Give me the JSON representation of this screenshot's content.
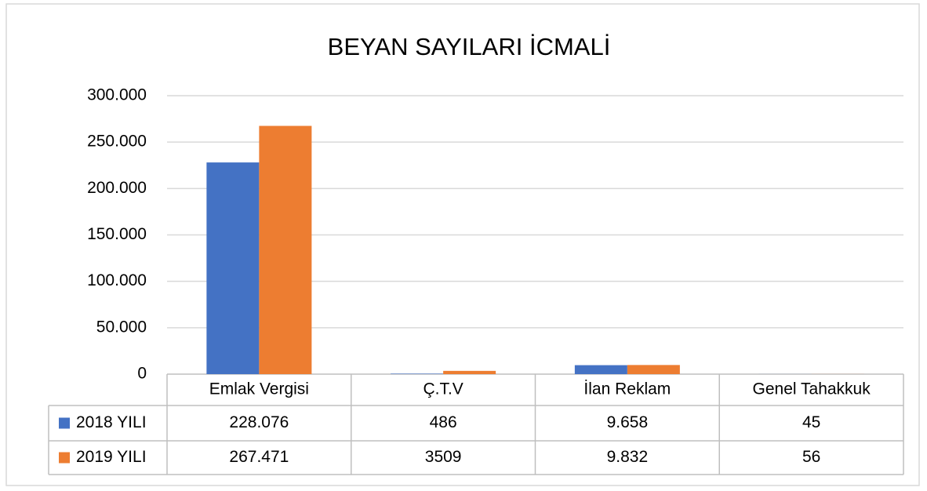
{
  "chart_data": {
    "type": "bar",
    "title": "BEYAN SAYILARI İCMALİ",
    "categories": [
      "Emlak Vergisi",
      "Ç.T.V",
      "İlan Reklam",
      "Genel Tahakkuk"
    ],
    "series": [
      {
        "name": "2018 YILI",
        "color": "#4472c4",
        "values": [
          228076,
          486,
          9658,
          45
        ],
        "value_labels": [
          "228.076",
          "486",
          "9.658",
          "45"
        ]
      },
      {
        "name": "2019 YILI",
        "color": "#ed7d31",
        "values": [
          267471,
          3509,
          9832,
          56
        ],
        "value_labels": [
          "267.471",
          "3509",
          "9.832",
          "56"
        ]
      }
    ],
    "ylim": [
      0,
      300000
    ],
    "yticks": [
      0,
      {
        "value": 50000,
        "label": "50.000"
      },
      {
        "value": 100000,
        "label": "100.000"
      },
      {
        "value": 150000,
        "label": "150.000"
      },
      {
        "value": 200000,
        "label": "200.000"
      },
      {
        "value": 250000,
        "label": "250.000"
      },
      {
        "value": 300000,
        "label": "300.000"
      }
    ],
    "grid": true
  }
}
